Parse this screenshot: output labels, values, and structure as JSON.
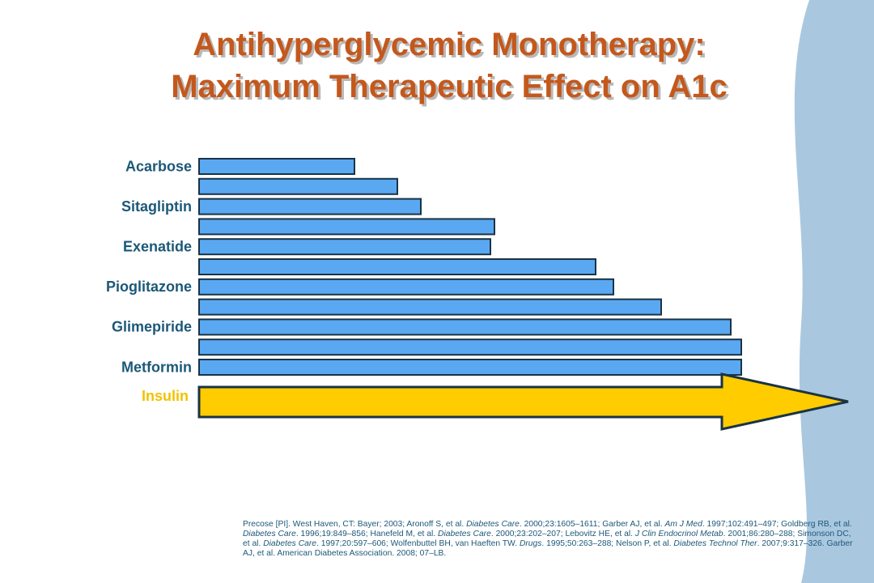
{
  "chart_data": {
    "type": "bar",
    "orientation": "horizontal",
    "title": [
      "Antihyperglycemic Monotherapy:",
      "Maximum Therapeutic Effect on A1c"
    ],
    "categories": [
      "Acarbose",
      null,
      "Sitagliptin",
      null,
      "Exenatide",
      null,
      "Pioglitazone",
      null,
      "Glimepiride",
      null,
      "Metformin"
    ],
    "values": [
      192,
      245,
      274,
      365,
      360,
      490,
      512,
      571,
      657,
      670,
      670
    ],
    "color": "#5aa8f2",
    "arrow_label": "Insulin",
    "arrow_color": "#ffcc00",
    "footnote": [
      "Precose [PI].  West Haven, CT: Bayer; 2003; Aronoff S, et al. ",
      "Diabetes Care",
      ". 2000;23:1605–1611; Garber AJ, et al. ",
      "Am J Med",
      ". 1997;102:491–497; Goldberg RB, et al. ",
      "Diabetes Care",
      ". 1996;19:849–856; Hanefeld M, et al. ",
      "Diabetes Care",
      ". 2000;23:202–207; Lebovitz HE, et al. ",
      "J Clin Endocrinol Metab",
      ". 2001;86:280–288; Simonson DC, et al. ",
      "Diabetes Care",
      ". 1997;20:597–606; Wolfenbuttel BH, van Haeften TW. ",
      "Drugs",
      ". 1995;50:263–288; Nelson P, et al. ",
      "Diabetes Technol Ther",
      ". 2007;9:317–326. Garber AJ, et al. American Diabetes Association. 2008; 07–LB."
    ]
  }
}
